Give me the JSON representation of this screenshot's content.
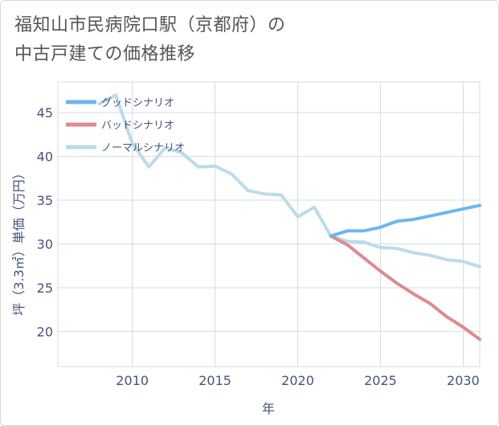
{
  "title_line1": "福知山市民病院口駅（京都府）の",
  "title_line2": "中古戸建ての価格推移",
  "chart_data": {
    "type": "line",
    "title": "福知山市民病院口駅（京都府）の中古戸建ての価格推移",
    "xlabel": "年",
    "ylabel": "坪（3.3㎡）単価（万円）",
    "xlim": [
      2005.5,
      2031
    ],
    "ylim": [
      16,
      48.5
    ],
    "xticks": [
      2010,
      2015,
      2020,
      2025,
      2030
    ],
    "yticks": [
      20,
      25,
      30,
      35,
      40,
      45
    ],
    "legend_position": "top-left",
    "series": [
      {
        "name": "グッドシナリオ",
        "color": "#6cb7ee",
        "x": [
          2022,
          2023,
          2024,
          2025,
          2026,
          2027,
          2028,
          2029,
          2030,
          2031
        ],
        "y": [
          30.9,
          31.5,
          31.5,
          31.9,
          32.6,
          32.8,
          33.2,
          33.6,
          34.0,
          34.4
        ]
      },
      {
        "name": "バッドシナリオ",
        "color": "#df8a90",
        "x": [
          2022,
          2023,
          2024,
          2025,
          2026,
          2027,
          2028,
          2029,
          2030,
          2031
        ],
        "y": [
          30.9,
          29.9,
          28.4,
          26.9,
          25.5,
          24.3,
          23.2,
          21.7,
          20.5,
          19.1
        ]
      },
      {
        "name": "ノーマルシナリオ",
        "color": "#bcdbea",
        "x": [
          2008,
          2009,
          2010,
          2011,
          2012,
          2013,
          2014,
          2015,
          2016,
          2017,
          2018,
          2019,
          2020,
          2021,
          2022,
          2023,
          2024,
          2025,
          2026,
          2027,
          2028,
          2029,
          2030,
          2031
        ],
        "y": [
          46.0,
          47.0,
          41.5,
          38.8,
          41.0,
          40.4,
          38.8,
          38.9,
          38.0,
          36.1,
          35.7,
          35.6,
          33.1,
          34.2,
          30.9,
          30.3,
          30.2,
          29.6,
          29.5,
          29.0,
          28.7,
          28.2,
          28.0,
          27.4
        ]
      }
    ]
  }
}
